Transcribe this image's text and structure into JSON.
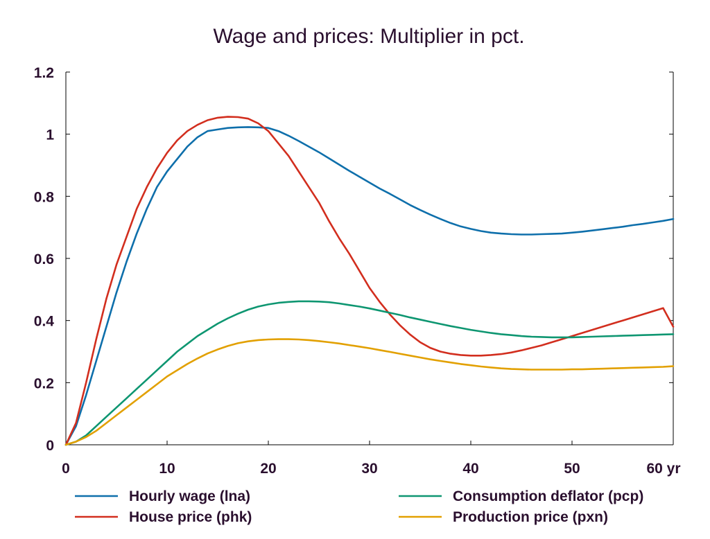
{
  "chart_data": {
    "type": "line",
    "title": "Wage and prices: Multiplier in pct.",
    "xlabel": "",
    "ylabel": "",
    "x_unit": "yr",
    "xlim": [
      0,
      60
    ],
    "ylim": [
      0,
      1.2
    ],
    "x_ticks": [
      0,
      10,
      20,
      30,
      40,
      50,
      60
    ],
    "x_tick_labels": [
      "0",
      "10",
      "20",
      "30",
      "40",
      "50",
      "60 yr"
    ],
    "y_ticks": [
      0,
      0.2,
      0.4,
      0.6,
      0.8,
      1.0,
      1.2
    ],
    "y_tick_labels": [
      "0",
      "0.2",
      "0.4",
      "0.6",
      "0.8",
      "1",
      "1.2"
    ],
    "grid": false,
    "legend_position": "bottom",
    "x": [
      0,
      1,
      2,
      3,
      4,
      5,
      6,
      7,
      8,
      9,
      10,
      11,
      12,
      13,
      14,
      15,
      16,
      17,
      18,
      19,
      20,
      21,
      22,
      23,
      24,
      25,
      26,
      27,
      28,
      29,
      30,
      31,
      32,
      33,
      34,
      35,
      36,
      37,
      38,
      39,
      40,
      41,
      42,
      43,
      44,
      45,
      46,
      47,
      48,
      49,
      50,
      51,
      52,
      53,
      54,
      55,
      56,
      57,
      58,
      59,
      60
    ],
    "series": [
      {
        "name": "Hourly wage (lna)",
        "color": "#0e6fab",
        "values": [
          0,
          0.06,
          0.16,
          0.27,
          0.38,
          0.49,
          0.59,
          0.68,
          0.76,
          0.83,
          0.88,
          0.92,
          0.96,
          0.99,
          1.01,
          1.015,
          1.02,
          1.022,
          1.023,
          1.022,
          1.02,
          1.01,
          0.995,
          0.978,
          0.96,
          0.942,
          0.922,
          0.902,
          0.882,
          0.863,
          0.844,
          0.825,
          0.808,
          0.79,
          0.772,
          0.756,
          0.741,
          0.727,
          0.714,
          0.703,
          0.695,
          0.688,
          0.683,
          0.68,
          0.678,
          0.677,
          0.677,
          0.678,
          0.679,
          0.68,
          0.683,
          0.686,
          0.69,
          0.694,
          0.698,
          0.702,
          0.707,
          0.711,
          0.716,
          0.721,
          0.727
        ]
      },
      {
        "name": "House price (phk)",
        "color": "#d22e1e",
        "values": [
          0,
          0.07,
          0.2,
          0.34,
          0.47,
          0.58,
          0.67,
          0.76,
          0.83,
          0.89,
          0.94,
          0.98,
          1.01,
          1.03,
          1.045,
          1.053,
          1.056,
          1.055,
          1.05,
          1.035,
          1.01,
          0.97,
          0.93,
          0.88,
          0.83,
          0.78,
          0.72,
          0.665,
          0.615,
          0.56,
          0.505,
          0.46,
          0.42,
          0.385,
          0.355,
          0.33,
          0.312,
          0.3,
          0.293,
          0.289,
          0.287,
          0.287,
          0.289,
          0.292,
          0.297,
          0.304,
          0.312,
          0.32,
          0.33,
          0.34,
          0.35,
          0.36,
          0.37,
          0.38,
          0.39,
          0.4,
          0.41,
          0.42,
          0.43,
          0.44,
          0.38
        ]
      },
      {
        "name": "Consumption deflator (pcp)",
        "color": "#0e9671",
        "values": [
          0,
          0.01,
          0.03,
          0.06,
          0.09,
          0.12,
          0.15,
          0.18,
          0.21,
          0.24,
          0.27,
          0.3,
          0.325,
          0.35,
          0.37,
          0.39,
          0.407,
          0.422,
          0.435,
          0.445,
          0.452,
          0.457,
          0.46,
          0.462,
          0.462,
          0.461,
          0.459,
          0.455,
          0.45,
          0.445,
          0.439,
          0.432,
          0.425,
          0.418,
          0.41,
          0.403,
          0.396,
          0.389,
          0.382,
          0.376,
          0.37,
          0.365,
          0.36,
          0.356,
          0.353,
          0.35,
          0.348,
          0.347,
          0.346,
          0.346,
          0.346,
          0.347,
          0.348,
          0.349,
          0.35,
          0.351,
          0.352,
          0.353,
          0.354,
          0.355,
          0.356
        ]
      },
      {
        "name": "Production price (pxn)",
        "color": "#e2a000",
        "values": [
          0,
          0.01,
          0.025,
          0.045,
          0.07,
          0.095,
          0.12,
          0.145,
          0.17,
          0.195,
          0.22,
          0.24,
          0.26,
          0.278,
          0.294,
          0.307,
          0.318,
          0.327,
          0.333,
          0.337,
          0.339,
          0.34,
          0.34,
          0.339,
          0.337,
          0.334,
          0.33,
          0.326,
          0.321,
          0.316,
          0.311,
          0.305,
          0.299,
          0.293,
          0.287,
          0.281,
          0.275,
          0.27,
          0.265,
          0.26,
          0.256,
          0.252,
          0.249,
          0.246,
          0.244,
          0.243,
          0.242,
          0.242,
          0.242,
          0.242,
          0.243,
          0.243,
          0.244,
          0.245,
          0.246,
          0.247,
          0.248,
          0.249,
          0.25,
          0.251,
          0.253
        ]
      }
    ]
  }
}
